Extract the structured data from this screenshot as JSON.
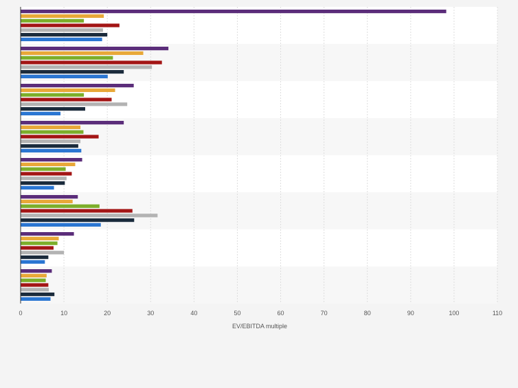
{
  "chart_data": {
    "type": "bar",
    "orientation": "horizontal",
    "xlabel": "EV/EBITDA multiple",
    "xlim": [
      0,
      110
    ],
    "xticks": [
      "0",
      "10",
      "20",
      "30",
      "40",
      "50",
      "60",
      "70",
      "80",
      "90",
      "100",
      "110"
    ],
    "grid": true,
    "legend": "none",
    "category_count": 8,
    "series": [
      {
        "color": "#5b2d7a",
        "values": [
          98.2,
          34.1,
          26.1,
          23.8,
          14.2,
          13.2,
          12.3,
          7.2
        ]
      },
      {
        "color": "#e8a838",
        "values": [
          19.2,
          28.3,
          21.8,
          13.8,
          12.6,
          12.0,
          8.8,
          6.0
        ]
      },
      {
        "color": "#7cae2a",
        "values": [
          14.6,
          21.3,
          14.6,
          14.5,
          10.4,
          18.2,
          8.5,
          5.8
        ]
      },
      {
        "color": "#a31515",
        "values": [
          22.8,
          32.6,
          21.0,
          18.0,
          11.8,
          25.8,
          7.6,
          6.4
        ]
      },
      {
        "color": "#b3b3b3",
        "values": [
          19.0,
          30.3,
          24.6,
          13.8,
          10.6,
          31.6,
          10.0,
          6.5
        ]
      },
      {
        "color": "#1b2b3c",
        "values": [
          20.0,
          23.8,
          14.9,
          13.3,
          10.2,
          26.2,
          6.4,
          7.8
        ]
      },
      {
        "color": "#2a76d2",
        "values": [
          18.8,
          20.1,
          9.2,
          14.0,
          7.7,
          18.5,
          5.6,
          6.9
        ]
      }
    ]
  }
}
